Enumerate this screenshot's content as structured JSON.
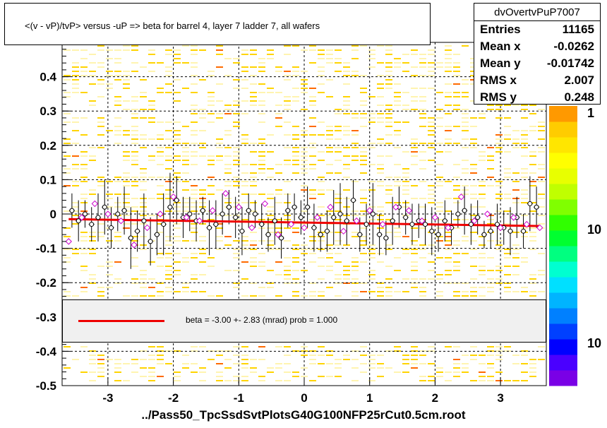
{
  "title": "<(v - vP)/tvP> versus -uP => beta for barrel 4, layer 7 ladder 7, all wafers",
  "stats": {
    "name": "dvOvertvPuP7007",
    "rows": [
      {
        "label": "Entries",
        "value": "11165"
      },
      {
        "label": "Mean x",
        "value": "-0.0262"
      },
      {
        "label": "Mean y",
        "value": "-0.01742"
      },
      {
        "label": "RMS x",
        "value": "2.007"
      },
      {
        "label": "RMS y",
        "value": "0.248"
      }
    ]
  },
  "fit_legend": "beta =   -3.00 +-  2.83 (mrad) prob = 1.000",
  "footer": "../Pass50_TpcSsdSvtPlotsG40G100NFP25rCut0.5cm.root",
  "colors": {
    "fit": "#ee0000",
    "cells": [
      "#fff4b0",
      "#ffd400",
      "#ff6a00"
    ],
    "points_black": "#000000",
    "points_magenta": "#cc00cc"
  },
  "chart_data": {
    "type": "scatter",
    "xlim": [
      -3.7,
      3.7
    ],
    "ylim": [
      -0.5,
      0.5
    ],
    "x_ticks": [
      "-3",
      "-2",
      "-1",
      "0",
      "1",
      "2",
      "3"
    ],
    "y_ticks": [
      "-0.5",
      "-0.4",
      "-0.3",
      "-0.2",
      "-0.1",
      "0",
      "0.1",
      "0.2",
      "0.3",
      "0.4"
    ],
    "grid": true,
    "colorbar": {
      "labels": [
        "1",
        "10",
        "10"
      ],
      "log_scale": true
    },
    "fit": {
      "x": [
        -3.6,
        3.6
      ],
      "y": [
        -0.015,
        -0.035
      ]
    },
    "series": [
      {
        "x": [
          -3.55,
          -3.45,
          -3.35,
          -3.25,
          -3.15,
          -3.05,
          -2.95,
          -2.85,
          -2.75,
          -2.65,
          -2.55,
          -2.45,
          -2.35,
          -2.25,
          -2.15,
          -2.05,
          -1.95,
          -1.85,
          -1.75,
          -1.65,
          -1.55,
          -1.45,
          -1.35,
          -1.25,
          -1.15,
          -1.05,
          -0.95,
          -0.85,
          -0.75,
          -0.65,
          -0.55,
          -0.45,
          -0.35,
          -0.25,
          -0.15,
          -0.05,
          0.05,
          0.15,
          0.25,
          0.35,
          0.45,
          0.55,
          0.65,
          0.75,
          0.85,
          0.95,
          1.05,
          1.15,
          1.25,
          1.35,
          1.45,
          1.55,
          1.65,
          1.75,
          1.85,
          1.95,
          2.05,
          2.15,
          2.25,
          2.35,
          2.45,
          2.55,
          2.65,
          2.75,
          2.85,
          2.95,
          3.05,
          3.15,
          3.25,
          3.35,
          3.45,
          3.55
        ],
        "y": [
          0.01,
          -0.02,
          0.0,
          -0.03,
          -0.01,
          0.02,
          -0.04,
          0.0,
          0.01,
          -0.07,
          -0.05,
          -0.02,
          -0.08,
          -0.06,
          -0.03,
          0.02,
          0.04,
          -0.01,
          0.0,
          -0.02,
          0.01,
          -0.04,
          -0.03,
          0.0,
          0.02,
          -0.01,
          -0.05,
          0.01,
          0.0,
          -0.03,
          -0.06,
          -0.02,
          -0.07,
          0.01,
          0.02,
          -0.01,
          0.02,
          -0.04,
          -0.06,
          -0.05,
          -0.01,
          0.0,
          -0.02,
          0.04,
          -0.06,
          -0.03,
          0.0,
          -0.06,
          -0.07,
          -0.02,
          0.02,
          -0.01,
          -0.03,
          -0.02,
          -0.03,
          -0.05,
          -0.06,
          -0.02,
          -0.04,
          0.0,
          0.01,
          -0.03,
          -0.01,
          -0.06,
          -0.05,
          -0.03,
          -0.04,
          -0.05,
          -0.01,
          -0.05,
          0.03,
          0.02
        ],
        "err": [
          0.05,
          0.06,
          0.04,
          0.05,
          0.07,
          0.08,
          0.06,
          0.05,
          0.07,
          0.09,
          0.06,
          0.08,
          0.07,
          0.06,
          0.09,
          0.1,
          0.07,
          0.06,
          0.05,
          0.06,
          0.04,
          0.08,
          0.07,
          0.06,
          0.05,
          0.06,
          0.07,
          0.05,
          0.04,
          0.06,
          0.05,
          0.07,
          0.06,
          0.05,
          0.04,
          0.05,
          0.06,
          0.07,
          0.05,
          0.06,
          0.08,
          0.09,
          0.07,
          0.06,
          0.05,
          0.06,
          0.09,
          0.06,
          0.05,
          0.07,
          0.06,
          0.05,
          0.06,
          0.05,
          0.06,
          0.07,
          0.05,
          0.06,
          0.05,
          0.04,
          0.07,
          0.06,
          0.05,
          0.04,
          0.05,
          0.06,
          0.05,
          0.07,
          0.06,
          0.05,
          0.08,
          0.06
        ]
      },
      {
        "x": [
          -3.6,
          -3.4,
          -3.2,
          -3.0,
          -2.8,
          -2.6,
          -2.4,
          -2.2,
          -2.0,
          -1.8,
          -1.6,
          -1.4,
          -1.2,
          -1.0,
          -0.8,
          -0.6,
          -0.4,
          -0.2,
          0.0,
          0.2,
          0.4,
          0.6,
          0.8,
          1.0,
          1.2,
          1.4,
          1.6,
          1.8,
          2.0,
          2.2,
          2.4,
          2.6,
          2.8,
          3.0,
          3.2,
          3.4,
          3.6
        ],
        "y": [
          -0.08,
          -0.01,
          0.03,
          0.0,
          -0.02,
          -0.09,
          -0.04,
          0.0,
          0.05,
          -0.01,
          -0.02,
          0.01,
          0.06,
          0.02,
          -0.04,
          0.03,
          -0.06,
          -0.03,
          -0.04,
          -0.01,
          0.02,
          -0.05,
          -0.02,
          0.01,
          -0.03,
          0.02,
          0.01,
          -0.02,
          -0.01,
          -0.04,
          0.05,
          -0.02,
          0.0,
          -0.04,
          -0.01,
          -0.03,
          -0.04
        ]
      }
    ]
  }
}
